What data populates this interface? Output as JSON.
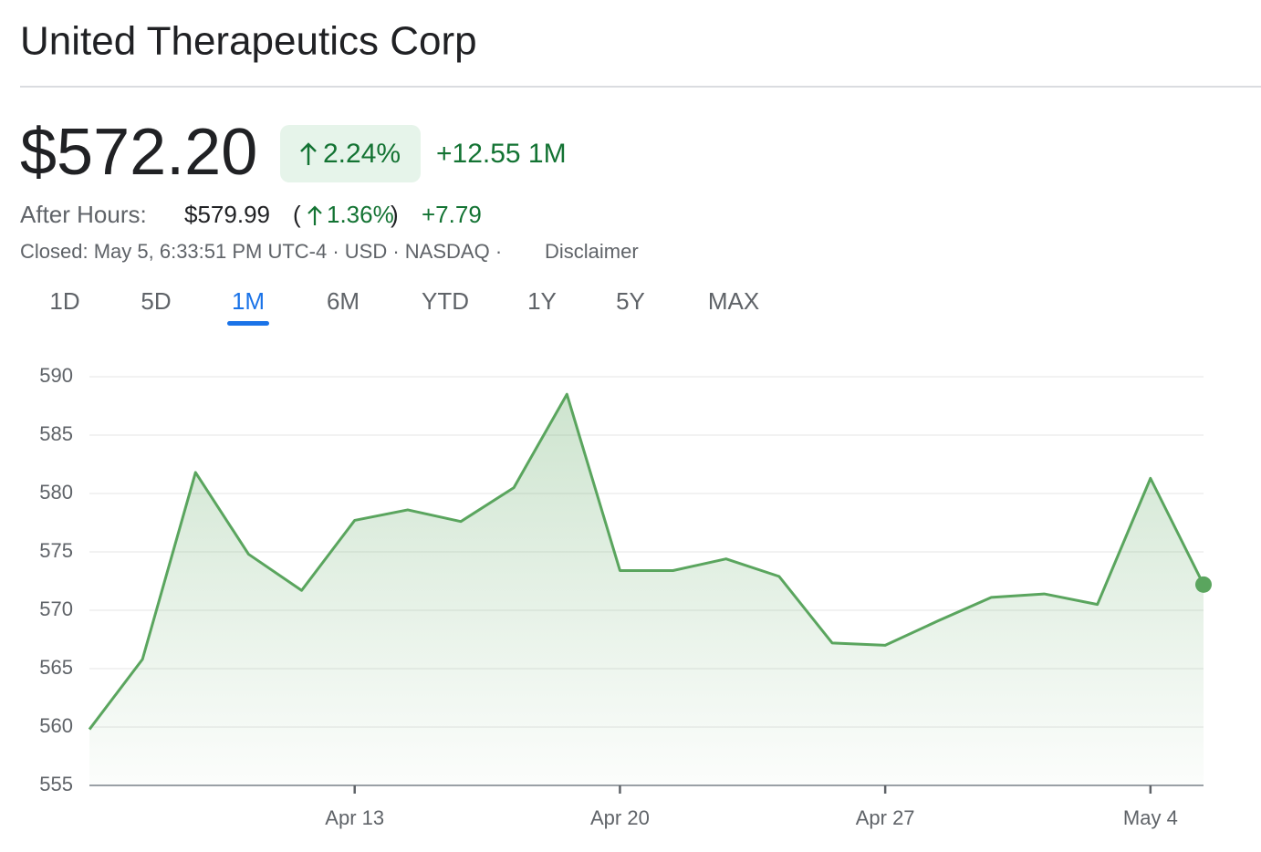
{
  "header": {
    "title": "United Therapeutics Corp",
    "price": "$572.20",
    "change_percent": "2.24%",
    "change": "+12.55 1M",
    "after_hours_label": "After Hours:",
    "after_hours_price": "$579.99",
    "after_hours_open": "(",
    "after_hours_percent": "1.36%",
    "after_hours_close": ")",
    "after_hours_change": "+7.79",
    "status": "Closed: May 5, 6:33:51 PM UTC-4 · USD · NASDAQ ·",
    "disclaimer": "Disclaimer"
  },
  "tabs": {
    "items": [
      "1D",
      "5D",
      "1M",
      "6M",
      "YTD",
      "1Y",
      "5Y",
      "MAX"
    ],
    "selected": 2
  },
  "chart_data": {
    "type": "line",
    "categories": [
      null,
      null,
      null,
      null,
      null,
      "Apr 13",
      null,
      null,
      null,
      null,
      "Apr 20",
      null,
      null,
      null,
      null,
      "Apr 27",
      null,
      null,
      null,
      null,
      "May 4",
      null
    ],
    "series": [
      {
        "color": "#5aa55e",
        "values": [
          559.8,
          565.8,
          581.8,
          574.8,
          571.7,
          577.7,
          578.6,
          577.6,
          580.5,
          588.5,
          573.4,
          573.4,
          574.4,
          572.9,
          567.2,
          567.0,
          569.1,
          571.1,
          571.4,
          570.5,
          581.3,
          572.2
        ]
      }
    ],
    "ylim": [
      555,
      590
    ],
    "yticks": [
      555,
      560,
      565,
      570,
      575,
      580,
      585,
      590
    ],
    "grid": true
  }
}
